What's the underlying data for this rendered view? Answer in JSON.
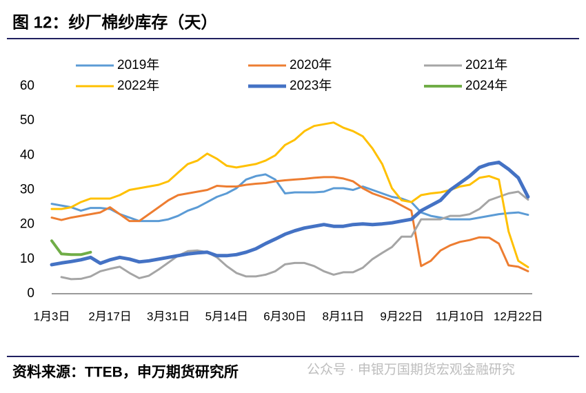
{
  "title": "图 12：纱厂棉纱库存（天）",
  "source": "资料来源：TTEB，申万期货研究所",
  "watermark": "公众号 · 申银万国期货宏观金融研究",
  "chart_data": {
    "type": "line",
    "categories": [
      "1月3日",
      null,
      null,
      null,
      null,
      null,
      "2月17日",
      null,
      null,
      null,
      null,
      null,
      "3月31日",
      null,
      null,
      null,
      null,
      null,
      "5月14日",
      null,
      null,
      null,
      null,
      null,
      "6月30日",
      null,
      null,
      null,
      null,
      null,
      "8月11日",
      null,
      null,
      null,
      null,
      null,
      "9月22日",
      null,
      null,
      null,
      null,
      null,
      "11月10日",
      null,
      null,
      null,
      null,
      null,
      "12月22日",
      null
    ],
    "ylim": [
      0,
      60
    ],
    "yticks": [
      0,
      10,
      20,
      30,
      40,
      50,
      60
    ],
    "grid": false,
    "series": [
      {
        "name": "2019年",
        "color": "#5b9bd5",
        "width": 3,
        "values": [
          26,
          25.5,
          25,
          24,
          24.8,
          24.8,
          24.5,
          23,
          22,
          21,
          21,
          21,
          21.5,
          22.5,
          24,
          25,
          26.5,
          28,
          29,
          30.5,
          33,
          34,
          34.5,
          33,
          29,
          29.3,
          29.3,
          29.3,
          29.5,
          30.5,
          30.5,
          30,
          31,
          30,
          29,
          28,
          27.5,
          26.5,
          23.5,
          22.5,
          22,
          21.5,
          21.5,
          21.5,
          22,
          22.5,
          23,
          23.3,
          23.5,
          22.8
        ]
      },
      {
        "name": "2020年",
        "color": "#ed7d31",
        "width": 3,
        "values": [
          22,
          21.3,
          22,
          22.5,
          23,
          23.5,
          25,
          23,
          21,
          21,
          23,
          25,
          27,
          28.5,
          29,
          29.5,
          30,
          31.2,
          31,
          31,
          31.5,
          31.8,
          32,
          32.5,
          32.8,
          33,
          33.2,
          33.5,
          33.7,
          33.7,
          33.3,
          32.5,
          30.5,
          29,
          28,
          27,
          25.5,
          24,
          8,
          9.5,
          12.5,
          14,
          15,
          15.5,
          16.3,
          16.2,
          14.5,
          8.2,
          7.8,
          6.5
        ]
      },
      {
        "name": "2021年",
        "color": "#a5a5a5",
        "width": 3,
        "values": [
          null,
          4.8,
          4.2,
          4.3,
          5,
          6.5,
          7.2,
          7.8,
          6,
          4.5,
          5.2,
          7,
          9,
          11,
          12.3,
          12.5,
          12,
          10.5,
          8,
          6,
          5,
          5,
          5.5,
          6.5,
          8.5,
          8.9,
          8.9,
          8,
          6.5,
          5.5,
          6.2,
          6.2,
          7.5,
          10,
          11.8,
          13.5,
          16.5,
          16.5,
          21.5,
          21.5,
          21.5,
          22.5,
          22.5,
          23,
          24.5,
          27,
          28,
          29,
          29.5,
          27.2
        ]
      },
      {
        "name": "2022年",
        "color": "#ffc000",
        "width": 3,
        "values": [
          24.5,
          24.5,
          25,
          26.5,
          27.5,
          27.5,
          27.5,
          28.5,
          30,
          30.5,
          31,
          31.5,
          32.5,
          35,
          37.5,
          38.5,
          40.5,
          39,
          37,
          36.5,
          37,
          37.5,
          38.5,
          40,
          43,
          44.5,
          47,
          48.5,
          49,
          49.5,
          48,
          47,
          45.5,
          42,
          37.5,
          30.5,
          27,
          26.5,
          28.5,
          29,
          29.3,
          30,
          31,
          31.5,
          33.5,
          34,
          33,
          18,
          9.5,
          7.7
        ]
      },
      {
        "name": "2023年",
        "color": "#4472c4",
        "width": 5,
        "values": [
          8.4,
          8.9,
          9.3,
          9.8,
          10.5,
          8.8,
          9.8,
          10.5,
          10,
          9.2,
          9.5,
          10,
          10.5,
          11,
          11.5,
          11.8,
          12,
          11,
          11,
          11.3,
          12,
          13,
          14.5,
          15.8,
          17.2,
          18.2,
          19,
          19.5,
          20,
          19.5,
          19.5,
          20,
          20.2,
          20,
          20.2,
          20.5,
          21,
          21.5,
          24,
          25.5,
          27,
          30,
          32,
          34,
          36.5,
          37.5,
          38,
          36,
          33.5,
          28
        ]
      },
      {
        "name": "2024年",
        "color": "#70ad47",
        "width": 4,
        "values": [
          15.3,
          11.5,
          11.3,
          11.3,
          12,
          null,
          null,
          null,
          null,
          null,
          null,
          null,
          null,
          null,
          null,
          null,
          null,
          null,
          null,
          null,
          null,
          null,
          null,
          null,
          null,
          null,
          null,
          null,
          null,
          null,
          null,
          null,
          null,
          null,
          null,
          null,
          null,
          null,
          null,
          null,
          null,
          null,
          null,
          null,
          null,
          null,
          null,
          null,
          null,
          null
        ]
      }
    ]
  }
}
